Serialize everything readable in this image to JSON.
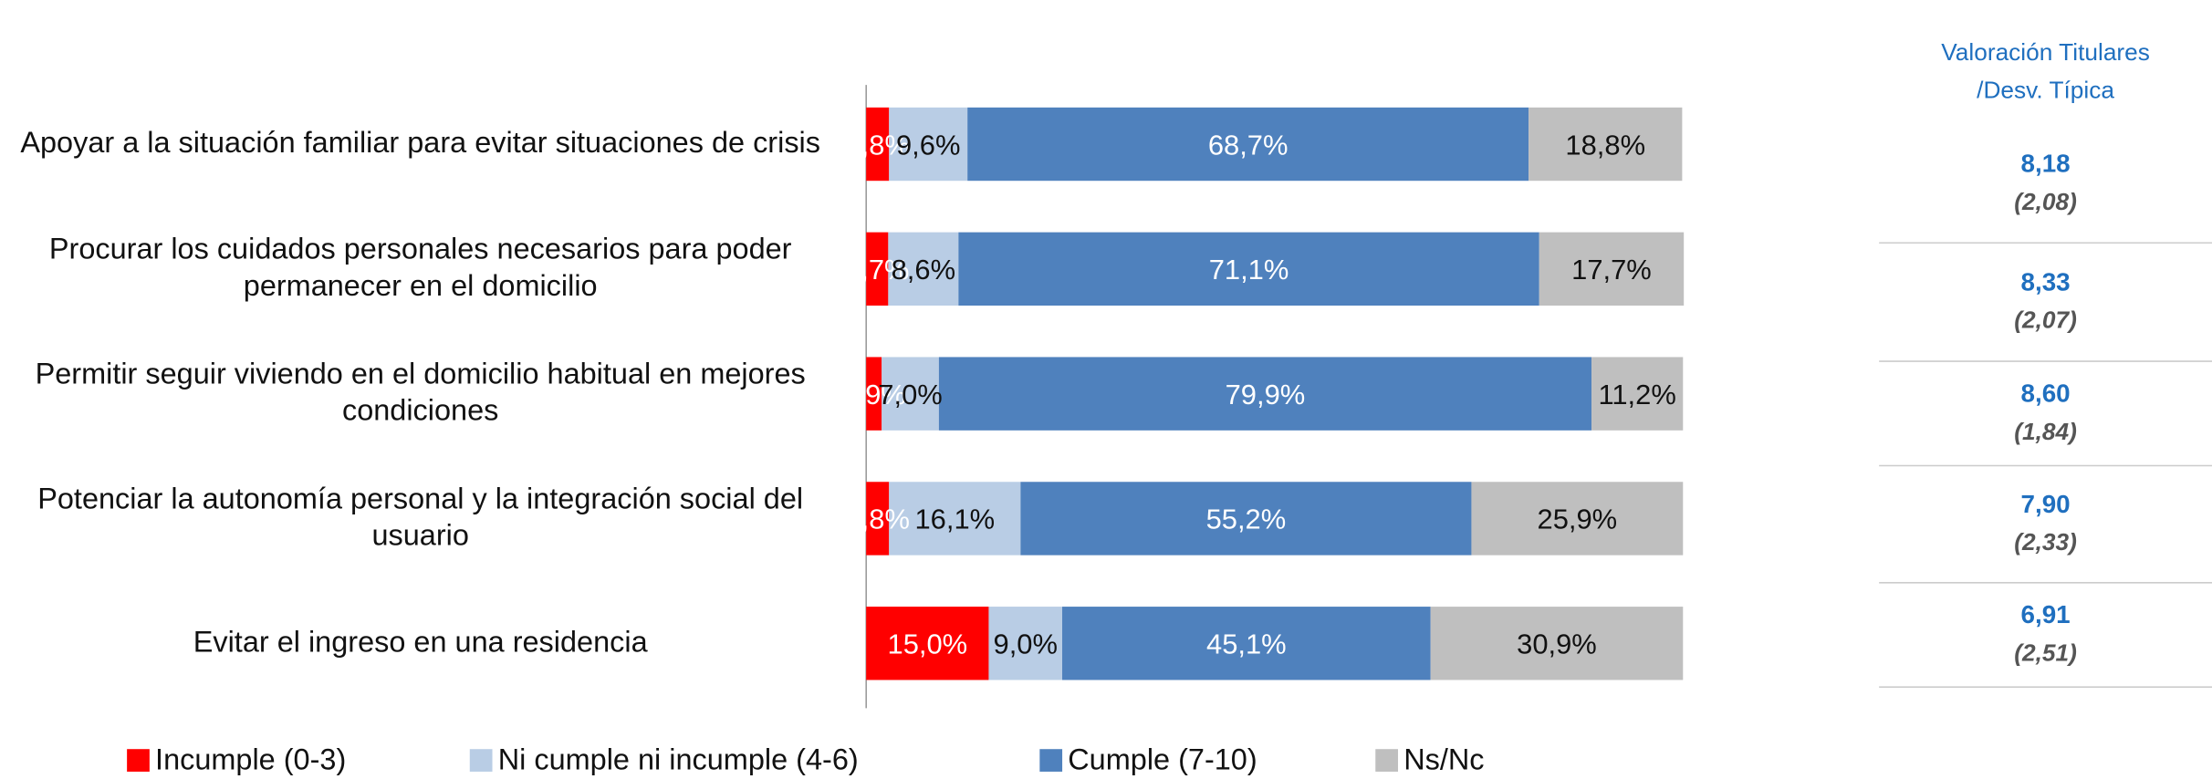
{
  "chart_data": {
    "type": "bar",
    "orientation": "horizontal",
    "stacked": true,
    "categories": [
      "Apoyar a la situación familiar para evitar situaciones de crisis",
      "Procurar los cuidados personales necesarios para poder permanecer en el domicilio",
      "Permitir seguir viviendo en el domicilio habitual en mejores condiciones",
      "Potenciar la autonomía personal y la integración social del usuario",
      "Evitar el ingreso en una residencia"
    ],
    "series": [
      {
        "name": "Incumple  (0-3)",
        "color": "#ff0000",
        "values": [
          2.8,
          2.7,
          1.9,
          2.8,
          15.0
        ],
        "value_labels": [
          "2,8%",
          "2,7%",
          "1,9%",
          "2,8%",
          "15,0%"
        ]
      },
      {
        "name": "Ni  cumple ni incumple (4-6)",
        "color": "#b9cde5",
        "values": [
          9.6,
          8.6,
          7.0,
          16.1,
          9.0
        ],
        "value_labels": [
          "9,6%",
          "8,6%",
          "7,0%",
          "16,1%",
          "9,0%"
        ]
      },
      {
        "name": "Cumple (7-10)",
        "color": "#4f81bd",
        "values": [
          68.7,
          71.1,
          79.9,
          55.2,
          45.1
        ],
        "value_labels": [
          "68,7%",
          "71,1%",
          "79,9%",
          "55,2%",
          "45,1%"
        ]
      },
      {
        "name": "Ns/Nc",
        "color": "#bfbfbf",
        "values": [
          18.8,
          17.7,
          11.2,
          25.9,
          30.9
        ],
        "value_labels": [
          "18,8%",
          "17,7%",
          "11,2%",
          "25,9%",
          "30,9%"
        ]
      }
    ],
    "xlim": [
      0,
      100
    ],
    "legend": "bottom"
  },
  "table": {
    "header": [
      "Valoración Titulares",
      "/Desv. Típica"
    ],
    "rows": [
      [
        "8,18",
        "(2,08)"
      ],
      [
        "8,33",
        "(2,07)"
      ],
      [
        "8,60",
        "(1,84)"
      ],
      [
        "7,90",
        "(2,33)"
      ],
      [
        "6,91",
        "(2,51)"
      ]
    ]
  }
}
